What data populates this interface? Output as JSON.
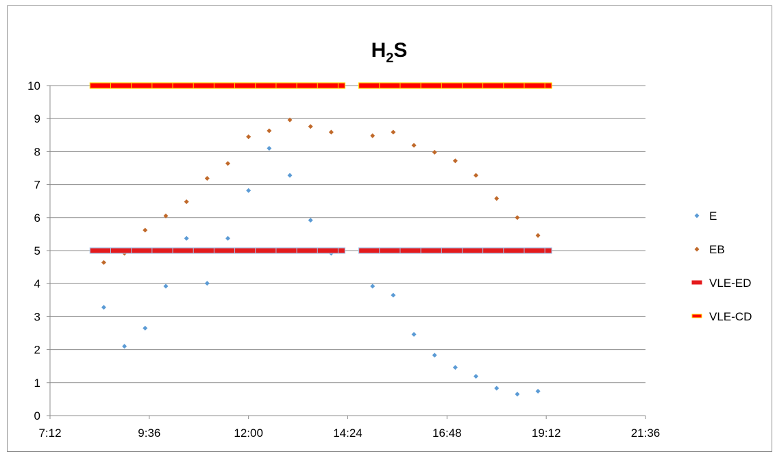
{
  "chart_data": {
    "type": "scatter",
    "title_main": "H",
    "title_sub": "2",
    "title_end": "S",
    "xlabel": "",
    "ylabel": "",
    "x_ticks": [
      "7:12",
      "9:36",
      "12:00",
      "14:24",
      "16:48",
      "19:12",
      "21:36"
    ],
    "x_range_minutes": [
      432,
      1296
    ],
    "y_ticks": [
      "0",
      "1",
      "2",
      "3",
      "4",
      "5",
      "6",
      "7",
      "8",
      "9",
      "10"
    ],
    "ylim": [
      0,
      10
    ],
    "grid": "horizontal",
    "legend_position": "right",
    "series": [
      {
        "name": "E",
        "kind": "points",
        "marker": "diamond",
        "color": "#5B9BD5",
        "points": [
          [
            "8:30",
            3.28
          ],
          [
            "9:00",
            2.1
          ],
          [
            "9:30",
            2.65
          ],
          [
            "10:00",
            3.92
          ],
          [
            "10:30",
            5.37
          ],
          [
            "11:00",
            4.01
          ],
          [
            "11:30",
            5.37
          ],
          [
            "12:00",
            6.82
          ],
          [
            "12:30",
            8.1
          ],
          [
            "13:00",
            7.28
          ],
          [
            "13:30",
            5.92
          ],
          [
            "14:00",
            4.92
          ],
          [
            "15:00",
            3.92
          ],
          [
            "15:30",
            3.65
          ],
          [
            "16:00",
            2.46
          ],
          [
            "16:30",
            1.83
          ],
          [
            "17:00",
            1.46
          ],
          [
            "17:30",
            1.19
          ],
          [
            "18:00",
            0.83
          ],
          [
            "18:30",
            0.65
          ],
          [
            "19:00",
            0.74
          ]
        ]
      },
      {
        "name": "EB",
        "kind": "points",
        "marker": "diamond",
        "color": "#C0692A",
        "points": [
          [
            "8:30",
            4.64
          ],
          [
            "9:00",
            4.92
          ],
          [
            "9:30",
            5.62
          ],
          [
            "10:00",
            6.05
          ],
          [
            "10:30",
            6.48
          ],
          [
            "11:00",
            7.19
          ],
          [
            "11:30",
            7.64
          ],
          [
            "12:00",
            8.45
          ],
          [
            "12:30",
            8.63
          ],
          [
            "13:00",
            8.96
          ],
          [
            "13:30",
            8.76
          ],
          [
            "14:00",
            8.59
          ],
          [
            "15:00",
            8.48
          ],
          [
            "15:30",
            8.59
          ],
          [
            "16:00",
            8.19
          ],
          [
            "16:30",
            7.98
          ],
          [
            "17:00",
            7.72
          ],
          [
            "17:30",
            7.28
          ],
          [
            "18:00",
            6.58
          ],
          [
            "18:30",
            6.0
          ],
          [
            "19:00",
            5.46
          ]
        ]
      },
      {
        "name": "VLE-ED",
        "kind": "segments",
        "color": "#E41A1C",
        "value": 5,
        "ranges": [
          [
            "8:10",
            "14:20"
          ],
          [
            "14:40",
            "19:20"
          ]
        ]
      },
      {
        "name": "VLE-CD",
        "kind": "segments",
        "color": "#FF0000",
        "edge_color": "#FFD700",
        "value": 10,
        "ranges": [
          [
            "8:10",
            "14:20"
          ],
          [
            "14:40",
            "19:20"
          ]
        ]
      }
    ]
  }
}
